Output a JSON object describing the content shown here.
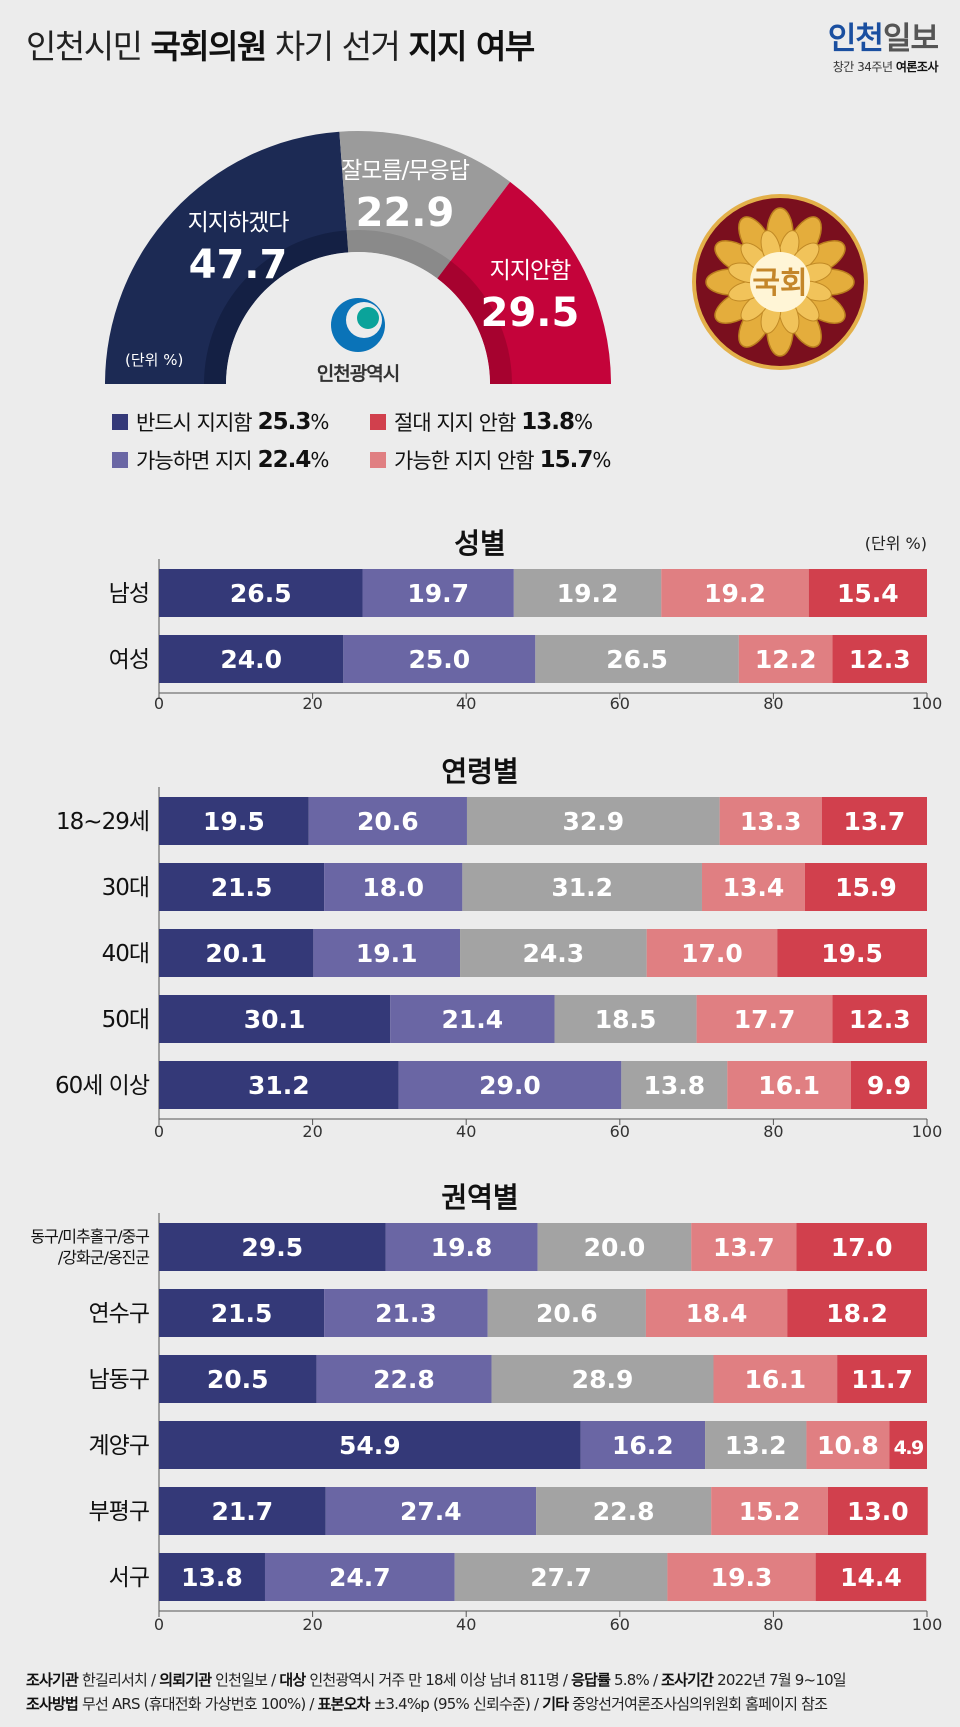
{
  "header": {
    "title_parts": [
      "인천시민 ",
      "국회의원",
      " 차기 선거 ",
      "지지 여부"
    ],
    "brand_blue": "인천",
    "brand_grey": "일보",
    "brand_sub_regular": "창간 34주년 ",
    "brand_sub_bold": "여론조사"
  },
  "colors": {
    "navy": "#1c2a54",
    "grey": "#9b9b9b",
    "crimson": "#c4033a",
    "dark_blue": "#343978",
    "mid_blue": "#6a66a4",
    "bar_grey": "#a3a3a3",
    "pink": "#e07f82",
    "red": "#d1404d"
  },
  "logo_text": "인천광역시",
  "emblem_text": "국회",
  "chart_data": [
    {
      "type": "pie",
      "variant": "semi-donut",
      "unit_label": "(단위 %)",
      "slices": [
        {
          "label": "지지하겠다",
          "value": 47.7
        },
        {
          "label": "잘모름/무응답",
          "value": 22.9
        },
        {
          "label": "지지안함",
          "value": 29.5
        }
      ],
      "legend": [
        {
          "label": "반드시 지지함",
          "value": "25.3",
          "unit": "%"
        },
        {
          "label": "절대 지지 안함",
          "value": "13.8",
          "unit": "%"
        },
        {
          "label": "가능하면 지지",
          "value": "22.4",
          "unit": "%"
        },
        {
          "label": "가능한 지지 안함",
          "value": "15.7",
          "unit": "%"
        }
      ]
    },
    {
      "type": "bar",
      "orientation": "horizontal",
      "stacked": true,
      "title": "성별",
      "unit_label": "(단위 %)",
      "xlim": [
        0,
        100
      ],
      "ticks": [
        "0",
        "20",
        "40",
        "60",
        "80",
        "100"
      ],
      "categories": [
        "남성",
        "여성"
      ],
      "values": [
        [
          "26.5",
          "19.7",
          "19.2",
          "19.2",
          "15.4"
        ],
        [
          "24.0",
          "25.0",
          "26.5",
          "12.2",
          "12.3"
        ]
      ]
    },
    {
      "type": "bar",
      "orientation": "horizontal",
      "stacked": true,
      "title": "연령별",
      "xlim": [
        0,
        100
      ],
      "ticks": [
        "0",
        "20",
        "40",
        "60",
        "80",
        "100"
      ],
      "categories": [
        "18~29세",
        "30대",
        "40대",
        "50대",
        "60세 이상"
      ],
      "values": [
        [
          "19.5",
          "20.6",
          "32.9",
          "13.3",
          "13.7"
        ],
        [
          "21.5",
          "18.0",
          "31.2",
          "13.4",
          "15.9"
        ],
        [
          "20.1",
          "19.1",
          "24.3",
          "17.0",
          "19.5"
        ],
        [
          "30.1",
          "21.4",
          "18.5",
          "17.7",
          "12.3"
        ],
        [
          "31.2",
          "29.0",
          "13.8",
          "16.1",
          "9.9"
        ]
      ]
    },
    {
      "type": "bar",
      "orientation": "horizontal",
      "stacked": true,
      "title": "권역별",
      "xlim": [
        0,
        100
      ],
      "ticks": [
        "0",
        "20",
        "40",
        "60",
        "80",
        "100"
      ],
      "categories": [
        "동구/미추홀구/중구\n/강화군/옹진군",
        "연수구",
        "남동구",
        "계양구",
        "부평구",
        "서구"
      ],
      "values": [
        [
          "29.5",
          "19.8",
          "20.0",
          "13.7",
          "17.0"
        ],
        [
          "21.5",
          "21.3",
          "20.6",
          "18.4",
          "18.2"
        ],
        [
          "20.5",
          "22.8",
          "28.9",
          "16.1",
          "11.7"
        ],
        [
          "54.9",
          "16.2",
          "13.2",
          "10.8",
          "4.9"
        ],
        [
          "21.7",
          "27.4",
          "22.8",
          "15.2",
          "13.0"
        ],
        [
          "13.8",
          "24.7",
          "27.7",
          "19.3",
          "14.4"
        ]
      ]
    }
  ],
  "footer": {
    "line1": [
      {
        "b": "조사기관",
        "t": " 한길리서치 / "
      },
      {
        "b": "의뢰기관",
        "t": " 인천일보 / "
      },
      {
        "b": "대상",
        "t": " 인천광역시 거주 만 18세 이상 남녀 811명 / "
      },
      {
        "b": "응답률",
        "t": " 5.8% / "
      },
      {
        "b": "조사기간",
        "t": " 2022년 7월 9~10일"
      }
    ],
    "line2": [
      {
        "b": "조사방법",
        "t": " 무선 ARS (휴대전화 가상번호 100%) / "
      },
      {
        "b": "표본오차",
        "t": " ±3.4%p (95% 신뢰수준) / "
      },
      {
        "b": "기타",
        "t": " 중앙선거여론조사심의위원회 홈페이지 참조"
      }
    ]
  }
}
